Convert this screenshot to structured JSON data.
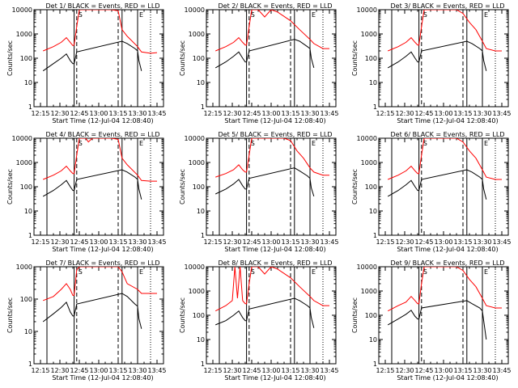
{
  "chart_data": [
    {
      "type": "line",
      "title": "Det 1/ BLACK = Events, RED = LLD",
      "xlabel": "Start Time (12-Jul-04 12:08:40)",
      "ylabel": "Counts/sec",
      "xlim": [
        "12:10",
        "13:50"
      ],
      "ylim": [
        1,
        10000
      ],
      "yscale": "log",
      "x_ticks": [
        "12:15",
        "12:30",
        "12:45",
        "13:00",
        "13:15",
        "13:30",
        "13:45"
      ],
      "y_ticks": [
        "1",
        "10",
        "100",
        "1000",
        "10000"
      ],
      "markers": [
        "S",
        "E"
      ],
      "series": [
        {
          "color": "#ff0000",
          "x": [
            "12:17",
            "12:25",
            "12:31",
            "12:35",
            "12:38",
            "12:40",
            "12:41",
            "12:43",
            "12:45",
            "12:50",
            "13:00",
            "13:10",
            "13:15",
            "13:18",
            "13:22",
            "13:30",
            "13:33",
            "13:40",
            "13:45"
          ],
          "values": [
            200,
            300,
            450,
            700,
            450,
            330,
            350,
            2000,
            10000,
            10000,
            10000,
            10000,
            9000,
            1500,
            800,
            300,
            180,
            160,
            170
          ]
        },
        {
          "color": "#000000",
          "x": [
            "12:17",
            "12:25",
            "12:31",
            "12:35",
            "12:38",
            "12:40",
            "12:41",
            "12:43",
            "13:18",
            "13:22",
            "13:28",
            "13:30",
            "13:31",
            "13:33"
          ],
          "values": [
            30,
            60,
            100,
            150,
            80,
            60,
            60,
            180,
            500,
            400,
            250,
            200,
            80,
            30
          ]
        }
      ]
    },
    {
      "type": "line",
      "title": "Det 2/ BLACK = Events, RED = LLD",
      "xlabel": "Start Time (12-Jul-04 12:08:40)",
      "ylabel": "Counts/sec",
      "xlim": [
        "12:10",
        "13:50"
      ],
      "ylim": [
        1,
        10000
      ],
      "yscale": "log",
      "x_ticks": [
        "12:15",
        "12:30",
        "12:45",
        "13:00",
        "13:15",
        "13:30",
        "13:45"
      ],
      "y_ticks": [
        "1",
        "10",
        "100",
        "1000",
        "10000"
      ],
      "markers": [
        "S",
        "E"
      ],
      "series": [
        {
          "color": "#ff0000",
          "x": [
            "12:17",
            "12:25",
            "12:31",
            "12:35",
            "12:38",
            "12:40",
            "12:41",
            "12:43",
            "12:45",
            "12:50",
            "12:55",
            "13:00",
            "13:05",
            "13:15",
            "13:22",
            "13:30",
            "13:33",
            "13:40",
            "13:45"
          ],
          "values": [
            200,
            300,
            450,
            700,
            450,
            350,
            350,
            2000,
            10000,
            10000,
            5000,
            10000,
            8000,
            3500,
            1500,
            600,
            400,
            250,
            250
          ]
        },
        {
          "color": "#000000",
          "x": [
            "12:17",
            "12:25",
            "12:31",
            "12:35",
            "12:38",
            "12:40",
            "12:41",
            "12:43",
            "13:18",
            "13:22",
            "13:28",
            "13:30",
            "13:31",
            "13:33"
          ],
          "values": [
            40,
            70,
            120,
            180,
            100,
            70,
            70,
            200,
            600,
            500,
            300,
            250,
            100,
            40
          ]
        }
      ]
    },
    {
      "type": "line",
      "title": "Det 3/ BLACK = Events, RED = LLD",
      "xlabel": "Start Time (12-Jul-04 12:08:40)",
      "ylabel": "Counts/sec",
      "xlim": [
        "12:10",
        "13:50"
      ],
      "ylim": [
        1,
        10000
      ],
      "yscale": "log",
      "x_ticks": [
        "12:15",
        "12:30",
        "12:45",
        "13:00",
        "13:15",
        "13:30",
        "13:45"
      ],
      "y_ticks": [
        "1",
        "10",
        "100",
        "1000",
        "10000"
      ],
      "markers": [
        "S",
        "E"
      ],
      "series": [
        {
          "color": "#ff0000",
          "x": [
            "12:17",
            "12:25",
            "12:31",
            "12:35",
            "12:38",
            "12:40",
            "12:41",
            "12:43",
            "12:45",
            "12:50",
            "13:00",
            "13:10",
            "13:15",
            "13:20",
            "13:25",
            "13:30",
            "13:33",
            "13:40",
            "13:45"
          ],
          "values": [
            200,
            300,
            450,
            700,
            450,
            350,
            350,
            2000,
            10000,
            10000,
            10000,
            10000,
            7000,
            3000,
            1500,
            500,
            250,
            200,
            200
          ]
        },
        {
          "color": "#000000",
          "x": [
            "12:17",
            "12:25",
            "12:31",
            "12:35",
            "12:38",
            "12:40",
            "12:41",
            "12:43",
            "13:18",
            "13:22",
            "13:28",
            "13:30",
            "13:31",
            "13:33"
          ],
          "values": [
            40,
            70,
            120,
            180,
            100,
            70,
            70,
            200,
            500,
            400,
            250,
            200,
            80,
            30
          ]
        }
      ]
    },
    {
      "type": "line",
      "title": "Det 4/ BLACK = Events, RED = LLD",
      "xlabel": "Start Time (12-Jul-04 12:08:40)",
      "ylabel": "Counts/sec",
      "xlim": [
        "12:10",
        "13:50"
      ],
      "ylim": [
        1,
        10000
      ],
      "yscale": "log",
      "x_ticks": [
        "12:15",
        "12:30",
        "12:45",
        "13:00",
        "13:15",
        "13:30",
        "13:45"
      ],
      "y_ticks": [
        "1",
        "10",
        "100",
        "1000",
        "10000"
      ],
      "markers": [
        "S",
        "E"
      ],
      "series": [
        {
          "color": "#ff0000",
          "x": [
            "12:17",
            "12:25",
            "12:31",
            "12:35",
            "12:38",
            "12:40",
            "12:41",
            "12:43",
            "12:45",
            "12:50",
            "12:52",
            "12:55",
            "13:00",
            "13:10",
            "13:15",
            "13:18",
            "13:22",
            "13:30",
            "13:33",
            "13:40",
            "13:45"
          ],
          "values": [
            200,
            300,
            450,
            700,
            450,
            350,
            350,
            2000,
            10000,
            10000,
            7000,
            10000,
            10000,
            10000,
            9000,
            1500,
            800,
            300,
            180,
            170,
            170
          ]
        },
        {
          "color": "#000000",
          "x": [
            "12:17",
            "12:25",
            "12:31",
            "12:35",
            "12:38",
            "12:40",
            "12:41",
            "12:43",
            "13:18",
            "13:22",
            "13:28",
            "13:30",
            "13:31",
            "13:33"
          ],
          "values": [
            40,
            70,
            120,
            180,
            100,
            70,
            70,
            200,
            500,
            400,
            250,
            200,
            80,
            30
          ]
        }
      ]
    },
    {
      "type": "line",
      "title": "Det 5/ BLACK = Events, RED = LLD",
      "xlabel": "Start Time (12-Jul-04 12:08:40)",
      "ylabel": "Counts/sec",
      "xlim": [
        "12:10",
        "13:50"
      ],
      "ylim": [
        1,
        10000
      ],
      "yscale": "log",
      "x_ticks": [
        "12:15",
        "12:30",
        "12:45",
        "13:00",
        "13:15",
        "13:30",
        "13:45"
      ],
      "y_ticks": [
        "1",
        "10",
        "100",
        "1000",
        "10000"
      ],
      "markers": [
        "S",
        "E"
      ],
      "series": [
        {
          "color": "#ff0000",
          "x": [
            "12:17",
            "12:25",
            "12:31",
            "12:35",
            "12:38",
            "12:40",
            "12:41",
            "12:43",
            "12:45",
            "12:50",
            "13:00",
            "13:10",
            "13:15",
            "13:20",
            "13:25",
            "13:30",
            "13:33",
            "13:40",
            "13:45"
          ],
          "values": [
            250,
            350,
            500,
            800,
            500,
            400,
            400,
            2000,
            10000,
            10000,
            10000,
            10000,
            8000,
            3000,
            1500,
            600,
            400,
            300,
            300
          ]
        },
        {
          "color": "#000000",
          "x": [
            "12:17",
            "12:25",
            "12:31",
            "12:35",
            "12:38",
            "12:40",
            "12:41",
            "12:43",
            "13:18",
            "13:22",
            "13:28",
            "13:30",
            "13:31",
            "13:33"
          ],
          "values": [
            50,
            80,
            130,
            200,
            110,
            80,
            80,
            220,
            600,
            450,
            280,
            220,
            90,
            40
          ]
        }
      ]
    },
    {
      "type": "line",
      "title": "Det 6/ BLACK = Events, RED = LLD",
      "xlabel": "Start Time (12-Jul-04 12:08:40)",
      "ylabel": "Counts/sec",
      "xlim": [
        "12:10",
        "13:50"
      ],
      "ylim": [
        1,
        10000
      ],
      "yscale": "log",
      "x_ticks": [
        "12:15",
        "12:30",
        "12:45",
        "13:00",
        "13:15",
        "13:30",
        "13:45"
      ],
      "y_ticks": [
        "1",
        "10",
        "100",
        "1000",
        "10000"
      ],
      "markers": [
        "S",
        "E"
      ],
      "series": [
        {
          "color": "#ff0000",
          "x": [
            "12:17",
            "12:25",
            "12:31",
            "12:35",
            "12:38",
            "12:40",
            "12:41",
            "12:43",
            "12:45",
            "12:50",
            "13:00",
            "13:10",
            "13:15",
            "13:20",
            "13:25",
            "13:30",
            "13:33",
            "13:40",
            "13:45"
          ],
          "values": [
            200,
            300,
            450,
            700,
            450,
            350,
            350,
            2000,
            10000,
            10000,
            10000,
            10000,
            7000,
            3000,
            1500,
            500,
            250,
            200,
            200
          ]
        },
        {
          "color": "#000000",
          "x": [
            "12:17",
            "12:25",
            "12:31",
            "12:35",
            "12:38",
            "12:40",
            "12:41",
            "12:43",
            "13:18",
            "13:22",
            "13:28",
            "13:30",
            "13:31",
            "13:33"
          ],
          "values": [
            40,
            70,
            120,
            180,
            100,
            70,
            70,
            200,
            500,
            400,
            250,
            200,
            80,
            30
          ]
        }
      ]
    },
    {
      "type": "line",
      "title": "Det 7/ BLACK = Events, RED = LLD",
      "xlabel": "Start Time (12-Jul-04 12:08:40)",
      "ylabel": "Counts/sec",
      "xlim": [
        "12:10",
        "13:50"
      ],
      "ylim": [
        1,
        1000
      ],
      "yscale": "log",
      "x_ticks": [
        "12:15",
        "12:30",
        "12:45",
        "13:00",
        "13:15",
        "13:30",
        "13:45"
      ],
      "y_ticks": [
        "1",
        "10",
        "100",
        "1000"
      ],
      "markers": [
        "S",
        "E"
      ],
      "series": [
        {
          "color": "#ff0000",
          "x": [
            "12:17",
            "12:25",
            "12:31",
            "12:35",
            "12:38",
            "12:40",
            "12:41",
            "12:43",
            "12:45",
            "12:50",
            "13:00",
            "13:10",
            "13:15",
            "13:18",
            "13:22",
            "13:30",
            "13:33",
            "13:40",
            "13:45"
          ],
          "values": [
            90,
            120,
            200,
            300,
            200,
            130,
            130,
            800,
            1000,
            1000,
            1000,
            1000,
            1000,
            700,
            300,
            200,
            150,
            150,
            150
          ]
        },
        {
          "color": "#000000",
          "x": [
            "12:17",
            "12:25",
            "12:31",
            "12:35",
            "12:38",
            "12:40",
            "12:41",
            "12:43",
            "13:18",
            "13:22",
            "13:28",
            "13:30",
            "13:31",
            "13:33"
          ],
          "values": [
            20,
            35,
            55,
            80,
            40,
            30,
            30,
            70,
            150,
            120,
            70,
            60,
            25,
            12
          ]
        }
      ]
    },
    {
      "type": "line",
      "title": "Det 8/ BLACK = Events, RED = LLD",
      "xlabel": "Start Time (12-Jul-04 12:08:40)",
      "ylabel": "Counts/sec",
      "xlim": [
        "12:10",
        "13:50"
      ],
      "ylim": [
        1,
        10000
      ],
      "yscale": "log",
      "x_ticks": [
        "12:15",
        "12:30",
        "12:45",
        "13:00",
        "13:15",
        "13:30",
        "13:45"
      ],
      "y_ticks": [
        "1",
        "10",
        "100",
        "1000",
        "10000"
      ],
      "markers": [
        "S",
        "E"
      ],
      "series": [
        {
          "color": "#ff0000",
          "x": [
            "12:17",
            "12:25",
            "12:30",
            "12:32",
            "12:34",
            "12:36",
            "12:38",
            "12:40",
            "12:41",
            "12:43",
            "12:45",
            "12:50",
            "12:55",
            "13:00",
            "13:05",
            "13:15",
            "13:22",
            "13:30",
            "13:33",
            "13:40",
            "13:45"
          ],
          "values": [
            150,
            250,
            400,
            10000,
            500,
            10000,
            400,
            300,
            300,
            2000,
            10000,
            10000,
            5000,
            10000,
            8000,
            3500,
            1500,
            600,
            400,
            250,
            250
          ]
        },
        {
          "color": "#000000",
          "x": [
            "12:17",
            "12:25",
            "12:31",
            "12:35",
            "12:38",
            "12:40",
            "12:41",
            "12:43",
            "13:18",
            "13:22",
            "13:28",
            "13:30",
            "13:31",
            "13:33"
          ],
          "values": [
            40,
            60,
            100,
            150,
            80,
            60,
            60,
            180,
            500,
            400,
            250,
            200,
            80,
            30
          ]
        }
      ]
    },
    {
      "type": "line",
      "title": "Det 9/ BLACK = Events, RED = LLD",
      "xlabel": "Start Time (12-Jul-04 12:08:40)",
      "ylabel": "Counts/sec",
      "xlim": [
        "12:10",
        "13:50"
      ],
      "ylim": [
        1,
        10000
      ],
      "yscale": "log",
      "x_ticks": [
        "12:15",
        "12:30",
        "12:45",
        "13:00",
        "13:15",
        "13:30",
        "13:45"
      ],
      "y_ticks": [
        "1",
        "10",
        "100",
        "1000",
        "10000"
      ],
      "markers": [
        "S",
        "E"
      ],
      "series": [
        {
          "color": "#ff0000",
          "x": [
            "12:17",
            "12:25",
            "12:31",
            "12:35",
            "12:38",
            "12:40",
            "12:41",
            "12:43",
            "12:45",
            "12:50",
            "13:00",
            "13:10",
            "13:15",
            "13:20",
            "13:25",
            "13:30",
            "13:33",
            "13:40",
            "13:45"
          ],
          "values": [
            150,
            250,
            350,
            600,
            400,
            300,
            300,
            2000,
            10000,
            10000,
            10000,
            10000,
            7000,
            3000,
            1500,
            500,
            250,
            200,
            200
          ]
        },
        {
          "color": "#000000",
          "x": [
            "12:17",
            "12:25",
            "12:31",
            "12:35",
            "12:38",
            "12:40",
            "12:41",
            "12:43",
            "13:18",
            "13:22",
            "13:28",
            "13:30",
            "13:31",
            "13:33"
          ],
          "values": [
            40,
            70,
            110,
            160,
            90,
            70,
            70,
            200,
            400,
            300,
            200,
            150,
            60,
            10
          ]
        }
      ]
    }
  ]
}
